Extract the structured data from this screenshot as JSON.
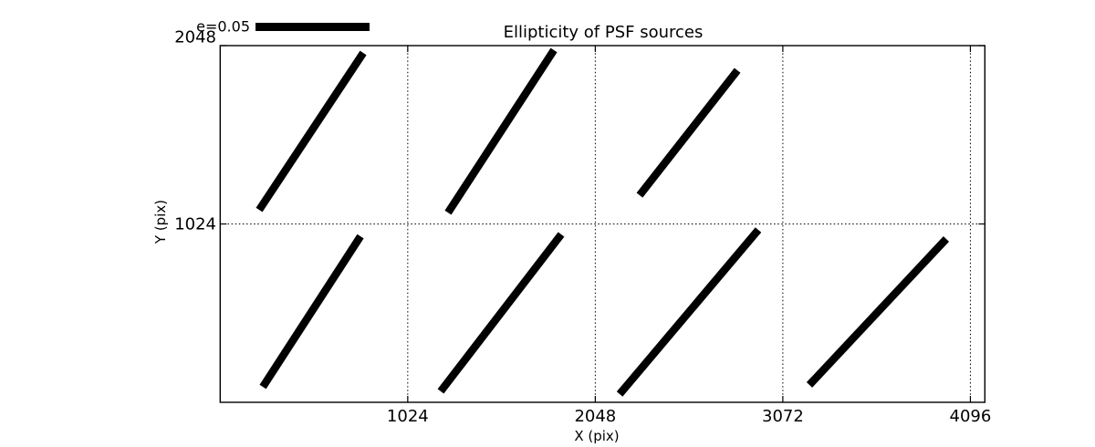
{
  "page": {
    "background": "#ffffff"
  },
  "chart_data": {
    "type": "quiver",
    "title": "Ellipticity of PSF sources",
    "xlabel": "X (pix)",
    "ylabel": "Y (pix)",
    "xlim": [
      0,
      4175
    ],
    "ylim": [
      0,
      2048
    ],
    "xticks": [
      "1024",
      "2048",
      "3072",
      "4096"
    ],
    "yticks": [
      "1024",
      "2048"
    ],
    "grid": "dotted",
    "legend": {
      "label": "e=0.05"
    },
    "colors": {
      "stroke": "#000000",
      "background": "#ffffff"
    },
    "whiskers": [
      {
        "x1": 213,
        "y1": 1105,
        "x2": 781,
        "y2": 2006
      },
      {
        "x1": 1244,
        "y1": 1089,
        "x2": 1822,
        "y2": 2022
      },
      {
        "x1": 2290,
        "y1": 1189,
        "x2": 2824,
        "y2": 1906
      },
      {
        "x1": 233,
        "y1": 89,
        "x2": 766,
        "y2": 953
      },
      {
        "x1": 1204,
        "y1": 63,
        "x2": 1862,
        "y2": 964
      },
      {
        "x1": 2181,
        "y1": 47,
        "x2": 2938,
        "y2": 990
      },
      {
        "x1": 3217,
        "y1": 100,
        "x2": 3964,
        "y2": 938
      }
    ]
  }
}
